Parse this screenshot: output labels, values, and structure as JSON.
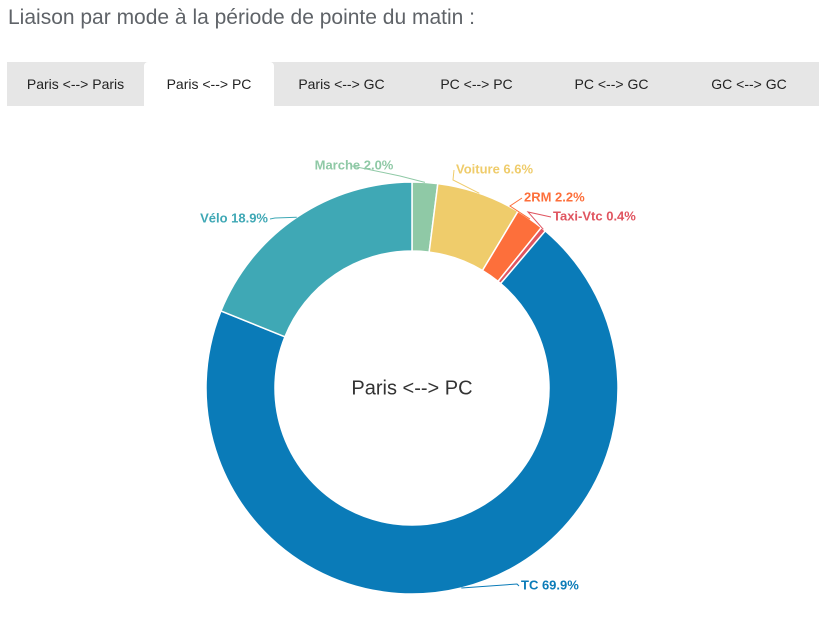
{
  "heading": "Liaison par mode à la période de pointe du matin :",
  "tabs": [
    {
      "label": "Paris <--> Paris",
      "active": false
    },
    {
      "label": "Paris <--> PC",
      "active": true
    },
    {
      "label": "Paris <--> GC",
      "active": false
    },
    {
      "label": "PC <--> PC",
      "active": false
    },
    {
      "label": "PC <--> GC",
      "active": false
    },
    {
      "label": "GC <--> GC",
      "active": false
    }
  ],
  "chart_data": {
    "type": "pie",
    "donut": true,
    "center_label": "Paris <--> PC",
    "slices": [
      {
        "name": "Marche",
        "value": 2.0,
        "label": "Marche 2.0%",
        "color": "#8fc9a6"
      },
      {
        "name": "Voiture",
        "value": 6.6,
        "label": "Voiture 6.6%",
        "color": "#efcc6b"
      },
      {
        "name": "2RM",
        "value": 2.2,
        "label": "2RM 2.2%",
        "color": "#fd6f3b"
      },
      {
        "name": "Taxi-Vtc",
        "value": 0.4,
        "label": "Taxi-Vtc 0.4%",
        "color": "#e05560"
      },
      {
        "name": "TC",
        "value": 69.9,
        "label": "TC 69.9%",
        "color": "#0a7bb8"
      },
      {
        "name": "Vélo",
        "value": 18.9,
        "label": "Vélo 18.9%",
        "color": "#3fa8b5"
      }
    ]
  }
}
